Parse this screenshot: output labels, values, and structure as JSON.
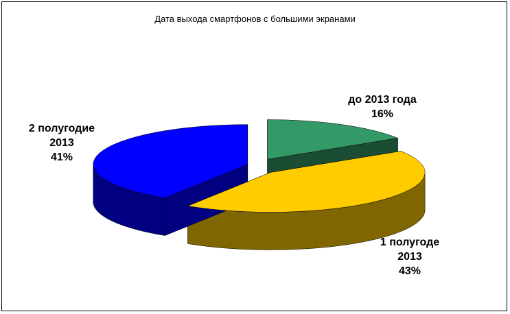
{
  "chart_data": {
    "type": "pie3d",
    "title": "Дата выхода смартфонов с большими экранами",
    "categories": [
      "до 2013 года",
      "1 полугоде 2013",
      "2 полугодие 2013"
    ],
    "values": [
      16,
      43,
      41
    ],
    "value_labels": [
      "16%",
      "43%",
      "41%"
    ],
    "colors": [
      "#339966",
      "#ffcc00",
      "#0000ff"
    ]
  }
}
